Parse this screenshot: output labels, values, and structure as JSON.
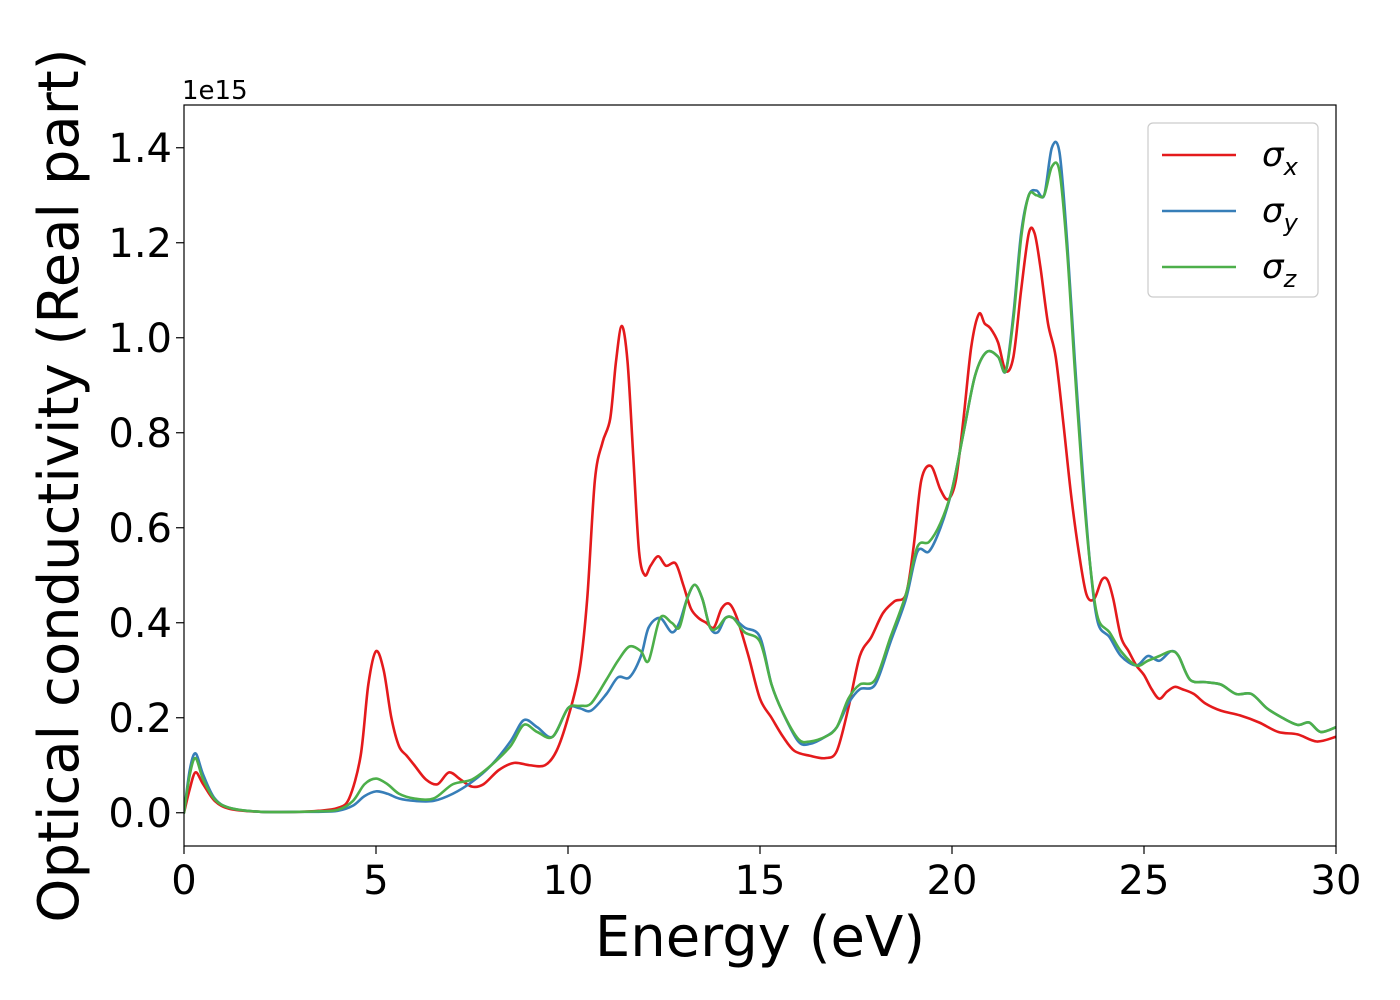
{
  "chart_data": {
    "type": "line",
    "xlabel": "Energy (eV)",
    "ylabel": "Optical conductivity (Real part)",
    "y_offset_label": "1e15",
    "xlim": [
      0,
      30
    ],
    "ylim": [
      -0.07,
      1.49
    ],
    "x_ticks": [
      0,
      5,
      10,
      15,
      20,
      25,
      30
    ],
    "x_tick_labels": [
      "0",
      "5",
      "10",
      "15",
      "20",
      "25",
      "30"
    ],
    "y_ticks": [
      0.0,
      0.2,
      0.4,
      0.6,
      0.8,
      1.0,
      1.2,
      1.4
    ],
    "y_tick_labels": [
      "0.0",
      "0.2",
      "0.4",
      "0.6",
      "0.8",
      "1.0",
      "1.2",
      "1.4"
    ],
    "grid": false,
    "legend_position": "top-right",
    "series": [
      {
        "name": "σx",
        "legend_main": "σ",
        "legend_sub": "x",
        "color": "#e41a1c",
        "x": [
          0,
          0.15,
          0.3,
          0.5,
          0.8,
          1.2,
          2,
          3,
          3.5,
          4,
          4.3,
          4.6,
          4.8,
          5.0,
          5.2,
          5.4,
          5.6,
          5.8,
          6.0,
          6.3,
          6.6,
          6.9,
          7.2,
          7.5,
          7.8,
          8.2,
          8.6,
          9.0,
          9.4,
          9.7,
          10.0,
          10.3,
          10.5,
          10.7,
          10.9,
          11.1,
          11.25,
          11.4,
          11.55,
          11.7,
          11.85,
          12.0,
          12.15,
          12.35,
          12.55,
          12.8,
          13.0,
          13.2,
          13.4,
          13.6,
          13.8,
          14.0,
          14.2,
          14.4,
          14.7,
          15.0,
          15.3,
          15.6,
          15.9,
          16.3,
          16.7,
          17.0,
          17.3,
          17.6,
          17.9,
          18.2,
          18.5,
          18.8,
          19.0,
          19.2,
          19.45,
          19.7,
          19.9,
          20.1,
          20.3,
          20.5,
          20.7,
          20.85,
          21.0,
          21.2,
          21.4,
          21.6,
          21.8,
          22.0,
          22.15,
          22.3,
          22.5,
          22.7,
          22.9,
          23.1,
          23.3,
          23.5,
          23.7,
          23.9,
          24.05,
          24.2,
          24.4,
          24.6,
          24.8,
          25.0,
          25.2,
          25.4,
          25.6,
          25.8,
          26.0,
          26.3,
          26.6,
          27.0,
          27.5,
          28.0,
          28.5,
          29.0,
          29.5,
          30.0
        ],
        "y": [
          0.0,
          0.05,
          0.085,
          0.06,
          0.025,
          0.008,
          0.002,
          0.002,
          0.004,
          0.01,
          0.03,
          0.12,
          0.27,
          0.34,
          0.3,
          0.2,
          0.14,
          0.12,
          0.1,
          0.07,
          0.06,
          0.085,
          0.07,
          0.055,
          0.06,
          0.09,
          0.105,
          0.1,
          0.1,
          0.13,
          0.2,
          0.3,
          0.45,
          0.7,
          0.78,
          0.83,
          0.95,
          1.025,
          0.95,
          0.75,
          0.55,
          0.5,
          0.52,
          0.54,
          0.52,
          0.525,
          0.48,
          0.43,
          0.41,
          0.4,
          0.39,
          0.43,
          0.44,
          0.41,
          0.33,
          0.24,
          0.2,
          0.16,
          0.13,
          0.12,
          0.115,
          0.13,
          0.22,
          0.33,
          0.37,
          0.42,
          0.445,
          0.46,
          0.56,
          0.7,
          0.73,
          0.68,
          0.66,
          0.7,
          0.83,
          0.98,
          1.05,
          1.03,
          1.02,
          0.99,
          0.93,
          0.96,
          1.1,
          1.22,
          1.22,
          1.15,
          1.03,
          0.96,
          0.82,
          0.67,
          0.55,
          0.46,
          0.45,
          0.49,
          0.49,
          0.45,
          0.37,
          0.34,
          0.31,
          0.29,
          0.26,
          0.24,
          0.255,
          0.265,
          0.26,
          0.25,
          0.23,
          0.215,
          0.205,
          0.19,
          0.17,
          0.165,
          0.15,
          0.16
        ]
      },
      {
        "name": "σy",
        "legend_main": "σ",
        "legend_sub": "y",
        "color": "#377eb8",
        "x": [
          0,
          0.15,
          0.3,
          0.5,
          0.8,
          1.2,
          2,
          3,
          3.5,
          4,
          4.4,
          4.7,
          5.0,
          5.3,
          5.6,
          6.0,
          6.5,
          7.0,
          7.5,
          8.0,
          8.5,
          8.85,
          9.2,
          9.6,
          10.0,
          10.3,
          10.6,
          11.0,
          11.3,
          11.6,
          11.9,
          12.1,
          12.4,
          12.7,
          12.9,
          13.1,
          13.3,
          13.5,
          13.7,
          13.9,
          14.1,
          14.3,
          14.6,
          15.0,
          15.3,
          15.6,
          16.0,
          16.3,
          16.7,
          17.0,
          17.3,
          17.6,
          18.0,
          18.4,
          18.8,
          19.1,
          19.4,
          19.7,
          20.0,
          20.3,
          20.6,
          20.9,
          21.2,
          21.4,
          21.6,
          21.8,
          22.0,
          22.2,
          22.4,
          22.6,
          22.8,
          23.0,
          23.2,
          23.4,
          23.6,
          23.8,
          24.1,
          24.4,
          24.8,
          25.1,
          25.4,
          25.7,
          25.9,
          26.2,
          26.6,
          27.0,
          27.4,
          27.8,
          28.2,
          28.6,
          29.0,
          29.3,
          29.6,
          30.0
        ],
        "y": [
          0.0,
          0.09,
          0.125,
          0.08,
          0.03,
          0.01,
          0.002,
          0.002,
          0.002,
          0.004,
          0.015,
          0.035,
          0.045,
          0.04,
          0.03,
          0.025,
          0.025,
          0.04,
          0.065,
          0.1,
          0.15,
          0.195,
          0.18,
          0.16,
          0.22,
          0.22,
          0.215,
          0.25,
          0.285,
          0.285,
          0.33,
          0.39,
          0.41,
          0.38,
          0.4,
          0.45,
          0.48,
          0.45,
          0.39,
          0.38,
          0.41,
          0.41,
          0.39,
          0.37,
          0.27,
          0.21,
          0.15,
          0.145,
          0.16,
          0.18,
          0.23,
          0.26,
          0.27,
          0.36,
          0.45,
          0.55,
          0.55,
          0.6,
          0.68,
          0.8,
          0.92,
          0.97,
          0.96,
          0.93,
          1.05,
          1.22,
          1.3,
          1.31,
          1.3,
          1.4,
          1.39,
          1.2,
          0.95,
          0.72,
          0.52,
          0.4,
          0.37,
          0.33,
          0.31,
          0.33,
          0.32,
          0.34,
          0.33,
          0.28,
          0.275,
          0.27,
          0.25,
          0.25,
          0.22,
          0.2,
          0.185,
          0.19,
          0.17,
          0.18
        ]
      },
      {
        "name": "σz",
        "legend_main": "σ",
        "legend_sub": "z",
        "color": "#4daf4a",
        "x": [
          0,
          0.15,
          0.3,
          0.5,
          0.8,
          1.2,
          2,
          3,
          3.5,
          4,
          4.4,
          4.7,
          5.0,
          5.3,
          5.6,
          6.0,
          6.5,
          7.0,
          7.5,
          8.0,
          8.5,
          8.85,
          9.2,
          9.6,
          10.0,
          10.3,
          10.6,
          11.0,
          11.3,
          11.6,
          11.9,
          12.1,
          12.4,
          12.7,
          12.9,
          13.1,
          13.3,
          13.5,
          13.7,
          13.9,
          14.1,
          14.3,
          14.6,
          15.0,
          15.3,
          15.6,
          16.0,
          16.3,
          16.7,
          17.0,
          17.3,
          17.6,
          18.0,
          18.4,
          18.8,
          19.1,
          19.4,
          19.7,
          20.0,
          20.3,
          20.6,
          20.9,
          21.2,
          21.4,
          21.6,
          21.8,
          22.0,
          22.2,
          22.4,
          22.6,
          22.8,
          23.0,
          23.2,
          23.4,
          23.6,
          23.8,
          24.1,
          24.4,
          24.8,
          25.1,
          25.4,
          25.7,
          25.9,
          26.2,
          26.6,
          27.0,
          27.4,
          27.8,
          28.2,
          28.6,
          29.0,
          29.3,
          29.6,
          30.0
        ],
        "y": [
          0.0,
          0.08,
          0.115,
          0.07,
          0.028,
          0.01,
          0.002,
          0.002,
          0.003,
          0.006,
          0.025,
          0.06,
          0.072,
          0.06,
          0.04,
          0.03,
          0.03,
          0.06,
          0.07,
          0.1,
          0.14,
          0.185,
          0.17,
          0.16,
          0.22,
          0.225,
          0.23,
          0.28,
          0.32,
          0.35,
          0.34,
          0.32,
          0.41,
          0.4,
          0.39,
          0.45,
          0.48,
          0.45,
          0.39,
          0.39,
          0.41,
          0.41,
          0.38,
          0.36,
          0.27,
          0.21,
          0.155,
          0.15,
          0.16,
          0.18,
          0.24,
          0.27,
          0.28,
          0.37,
          0.46,
          0.56,
          0.57,
          0.61,
          0.68,
          0.8,
          0.92,
          0.97,
          0.96,
          0.93,
          1.04,
          1.21,
          1.3,
          1.3,
          1.3,
          1.36,
          1.35,
          1.18,
          0.93,
          0.7,
          0.52,
          0.41,
          0.38,
          0.34,
          0.31,
          0.32,
          0.33,
          0.34,
          0.33,
          0.28,
          0.275,
          0.27,
          0.25,
          0.25,
          0.22,
          0.2,
          0.185,
          0.19,
          0.17,
          0.18
        ]
      }
    ]
  }
}
